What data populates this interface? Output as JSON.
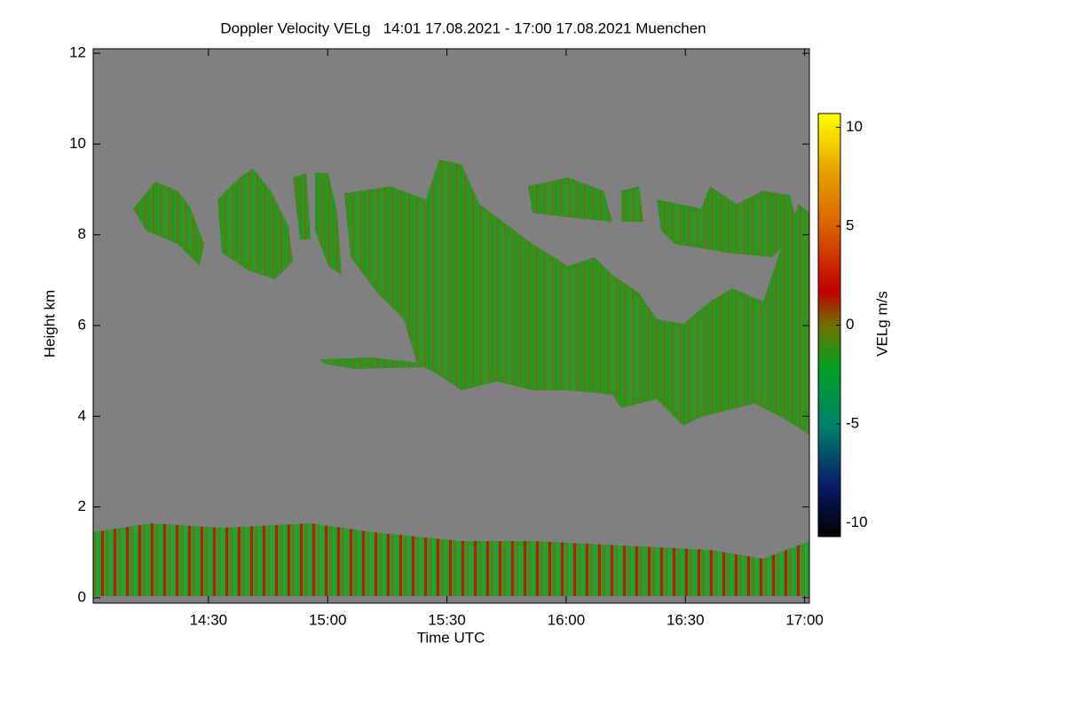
{
  "chart_data": {
    "type": "heatmap",
    "title": "Doppler Velocity VELg   14:01 17.08.2021 - 17:00 17.08.2021 Muenchen",
    "xlabel": "Time UTC",
    "ylabel": "Height km",
    "colorbar_label": "VELg m/s",
    "xlim": [
      14.0167,
      17.02
    ],
    "xticks": [
      {
        "value": 14.5,
        "label": "14:30"
      },
      {
        "value": 15,
        "label": "15:00"
      },
      {
        "value": 15.5,
        "label": "15:30"
      },
      {
        "value": 16,
        "label": "16:00"
      },
      {
        "value": 16.5,
        "label": "16:30"
      },
      {
        "value": 17,
        "label": "17:00"
      }
    ],
    "ylim": [
      -0.12,
      12.1
    ],
    "yticks": [
      0,
      2,
      4,
      6,
      8,
      10,
      12
    ],
    "clim": [
      -10.7,
      10.7
    ],
    "cticks": [
      -10,
      -5,
      0,
      5,
      10
    ]
  }
}
